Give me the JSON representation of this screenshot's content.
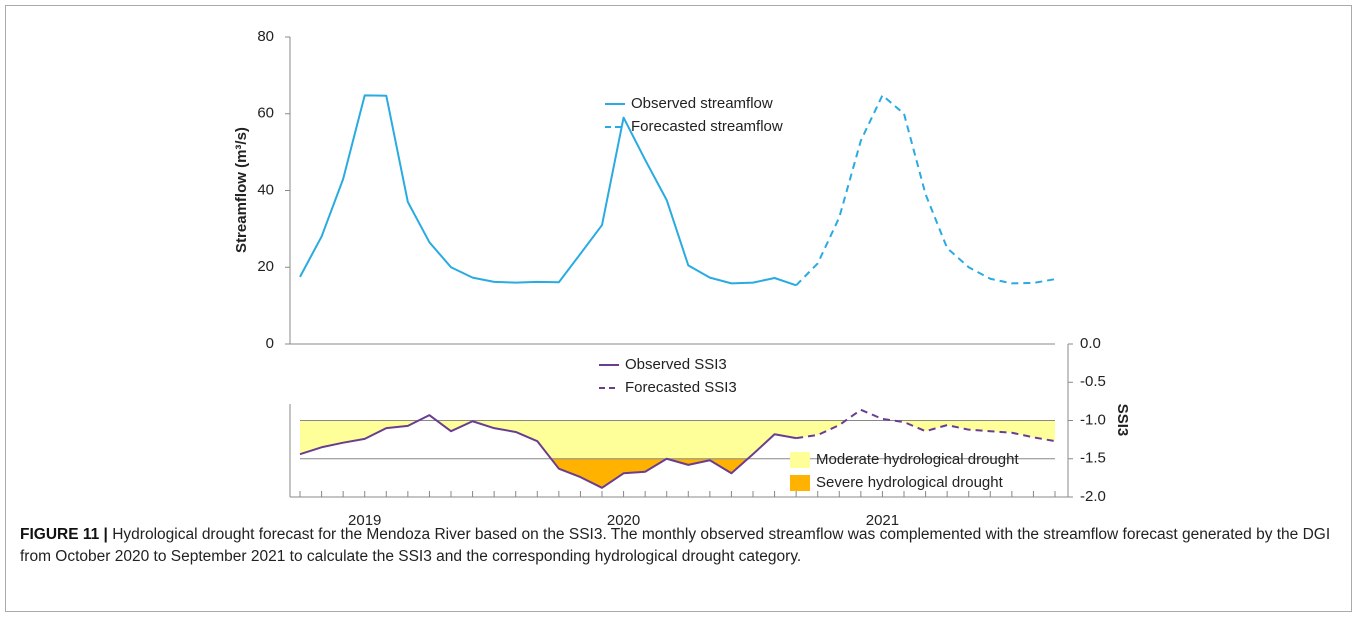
{
  "chart_data": {
    "type": "line",
    "categories": [
      null,
      null,
      null,
      "2019",
      null,
      null,
      null,
      null,
      null,
      null,
      null,
      null,
      null,
      null,
      null,
      "2020",
      null,
      null,
      null,
      null,
      null,
      null,
      null,
      null,
      null,
      null,
      null,
      "2021",
      null,
      null,
      null,
      null,
      null,
      null,
      null,
      null
    ],
    "ylabel": "Streamflow (m³/s)",
    "y2label": "SSI3",
    "ylim": [
      0,
      80
    ],
    "yticks": [
      0,
      20,
      40,
      60,
      80
    ],
    "y2lim": [
      -2.0,
      0.0
    ],
    "y2ticks": [
      {
        "value": 0.0,
        "label": "0.0"
      },
      -0.5,
      {
        "value": -1.0,
        "label": "-1.0"
      },
      -1.5,
      {
        "value": -2.0,
        "label": "-2.0"
      }
    ],
    "series": [
      {
        "name": "Observed streamflow",
        "color": "#29abe2",
        "style": "solid",
        "axis": "y",
        "values": [
          17.5,
          28,
          43,
          64.8,
          64.7,
          37,
          26.5,
          20,
          17.3,
          16.2,
          16,
          16.2,
          16.1,
          23.5,
          31,
          59,
          48,
          37.5,
          20.5,
          17.3,
          15.8,
          16,
          17.2,
          15.3,
          null,
          null,
          null,
          null,
          null,
          null,
          null,
          null,
          null,
          null,
          null,
          null
        ]
      },
      {
        "name": "Forecasted streamflow",
        "color": "#29abe2",
        "style": "dashed",
        "axis": "y",
        "values": [
          null,
          null,
          null,
          null,
          null,
          null,
          null,
          null,
          null,
          null,
          null,
          null,
          null,
          null,
          null,
          null,
          null,
          null,
          null,
          null,
          null,
          null,
          null,
          15.3,
          21,
          33,
          53,
          64.8,
          60,
          39,
          25,
          20,
          17,
          15.8,
          15.9,
          16.9
        ]
      },
      {
        "name": "Observed SSI3",
        "color": "#6a3d8f",
        "style": "solid",
        "axis": "y2",
        "values": [
          -1.44,
          -1.35,
          -1.29,
          -1.24,
          -1.1,
          -1.07,
          -0.93,
          -1.14,
          -1.01,
          -1.1,
          -1.15,
          -1.27,
          -1.63,
          -1.74,
          -1.88,
          -1.69,
          -1.67,
          -1.5,
          -1.58,
          -1.52,
          -1.69,
          -1.44,
          -1.18,
          -1.23,
          null,
          null,
          null,
          null,
          null,
          null,
          null,
          null,
          null,
          null,
          null,
          null
        ]
      },
      {
        "name": "Forecasted SSI3",
        "color": "#6a3d8f",
        "style": "dashed",
        "axis": "y2",
        "values": [
          null,
          null,
          null,
          null,
          null,
          null,
          null,
          null,
          null,
          null,
          null,
          null,
          null,
          null,
          null,
          null,
          null,
          null,
          null,
          null,
          null,
          null,
          null,
          -1.23,
          -1.19,
          -1.06,
          -0.86,
          -0.98,
          -1.02,
          -1.14,
          -1.06,
          -1.12,
          -1.14,
          -1.16,
          -1.22,
          -1.27
        ]
      }
    ],
    "drought_classes": [
      {
        "name": "Moderate hydrological drought",
        "color": "#ffff99",
        "threshold": -1.0
      },
      {
        "name": "Severe hydrological drought",
        "color": "#ffb300",
        "threshold": -1.5
      }
    ]
  },
  "caption": {
    "label": "FIGURE 11 |",
    "text": "Hydrological drought forecast for the Mendoza River based on the SSI3. The monthly observed streamflow was complemented with the streamflow forecast generated by the DGI from October 2020 to September 2021 to calculate the SSI3 and the corresponding hydrological drought category."
  }
}
